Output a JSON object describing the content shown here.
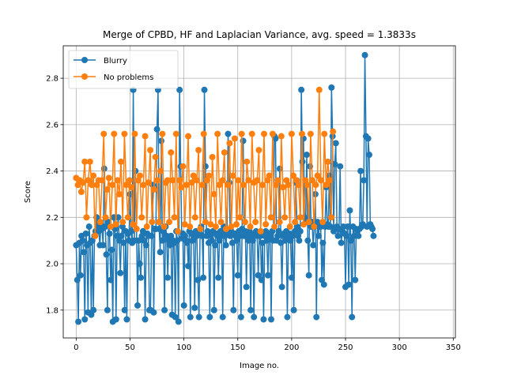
{
  "chart_data": {
    "type": "line",
    "title": "Merge of CPBD, HF and Laplacian Variance, avg. speed = 1.3833s",
    "xlabel": "Image no.",
    "ylabel": "Score",
    "xlim": [
      -12,
      352
    ],
    "ylim": [
      1.68,
      2.94
    ],
    "xticks": [
      0,
      50,
      100,
      150,
      200,
      250,
      300,
      350
    ],
    "yticks": [
      1.8,
      2.0,
      2.2,
      2.4,
      2.6,
      2.8
    ],
    "ytick_labels": [
      "1.8",
      "2.0",
      "2.2",
      "2.4",
      "2.6",
      "2.8"
    ],
    "grid": true,
    "legend_position": "top-left",
    "series": [
      {
        "name": "Blurry",
        "color": "#1f77b4",
        "values": [
          2.08,
          1.93,
          1.75,
          2.09,
          1.95,
          2.12,
          2.1,
          2.05,
          1.76,
          2.13,
          2.08,
          1.79,
          2.16,
          2.09,
          1.78,
          2.1,
          1.8,
          2.12,
          2.14,
          2.2,
          2.16,
          2.14,
          2.08,
          2.17,
          2.15,
          2.08,
          2.41,
          2.16,
          2.04,
          1.8,
          2.18,
          2.13,
          1.93,
          2.06,
          1.75,
          2.2,
          2.15,
          1.76,
          2.12,
          2.2,
          2.1,
          1.96,
          2.12,
          2.16,
          2.09,
          1.8,
          2.14,
          1.76,
          2.13,
          2.1,
          2.3,
          2.14,
          2.09,
          2.75,
          2.1,
          2.4,
          2.15,
          1.82,
          2.1,
          2.0,
          1.94,
          2.12,
          2.14,
          2.1,
          1.76,
          2.08,
          2.13,
          2.12,
          1.8,
          1.8,
          2.12,
          2.34,
          1.79,
          2.15,
          2.15,
          2.58,
          2.75,
          2.15,
          2.05,
          2.53,
          2.1,
          2.14,
          1.8,
          2.16,
          2.12,
          1.94,
          2.1,
          2.08,
          2.12,
          1.78,
          2.1,
          2.09,
          1.77,
          2.14,
          2.1,
          1.75,
          2.75,
          2.42,
          2.11,
          2.13,
          1.82,
          2.12,
          2.1,
          2.09,
          1.99,
          2.14,
          1.77,
          2.13,
          2.1,
          2.12,
          1.81,
          2.14,
          2.12,
          1.93,
          1.77,
          2.13,
          2.16,
          2.12,
          1.94,
          2.75,
          2.42,
          2.12,
          2.14,
          2.09,
          1.77,
          2.12,
          2.1,
          2.14,
          1.8,
          2.08,
          2.13,
          2.12,
          1.94,
          2.1,
          2.14,
          2.12,
          1.77,
          2.16,
          2.12,
          2.08,
          2.13,
          2.56,
          2.35,
          2.12,
          2.14,
          2.09,
          1.8,
          2.13,
          2.12,
          2.1,
          1.95,
          2.14,
          2.12,
          1.77,
          2.15,
          2.53,
          2.12,
          2.14,
          1.9,
          2.12,
          2.1,
          2.14,
          1.8,
          2.12,
          2.1,
          1.77,
          2.13,
          2.14,
          2.12,
          1.95,
          2.13,
          2.12,
          1.93,
          2.09,
          1.76,
          2.12,
          2.14,
          2.1,
          1.95,
          2.13,
          2.12,
          1.76,
          2.14,
          2.1,
          2.55,
          2.54,
          2.1,
          2.12,
          2.14,
          2.41,
          2.09,
          1.9,
          2.12,
          2.13,
          2.1,
          2.14,
          1.77,
          2.12,
          2.13,
          2.1,
          1.94,
          2.12,
          1.8,
          2.14,
          2.35,
          2.16,
          2.12,
          2.1,
          2.14,
          2.75,
          2.44,
          2.54,
          2.2,
          2.18,
          2.47,
          2.1,
          1.95,
          2.42,
          2.16,
          2.18,
          2.08,
          2.16,
          2.3,
          1.77,
          2.18,
          2.12,
          2.17,
          2.16,
          1.93,
          2.09,
          1.91,
          2.16,
          2.33,
          2.17,
          2.16,
          2.38,
          2.16,
          2.76,
          2.55,
          2.14,
          2.43,
          2.52,
          2.16,
          2.12,
          2.15,
          2.42,
          2.09,
          2.14,
          2.16,
          2.13,
          1.9,
          2.12,
          2.16,
          1.91,
          2.23,
          2.1,
          1.77,
          2.16,
          2.12,
          1.93,
          2.15,
          2.14,
          2.12,
          2.15,
          2.4,
          2.16,
          2.17,
          2.36,
          2.9,
          2.55,
          2.16,
          2.54,
          2.47,
          2.17,
          2.16,
          2.15,
          2.12
        ],
        "x_step": 1
      },
      {
        "name": "No problems",
        "color": "#ff7f0e",
        "values": [
          2.37,
          2.34,
          2.36,
          2.31,
          2.35,
          2.44,
          2.2,
          2.36,
          2.44,
          2.34,
          2.38,
          2.12,
          2.34,
          2.36,
          2.18,
          2.36,
          2.56,
          2.2,
          2.32,
          2.37,
          2.16,
          2.34,
          2.56,
          2.17,
          2.36,
          2.3,
          2.44,
          2.18,
          2.56,
          2.34,
          2.2,
          2.36,
          2.33,
          2.17,
          2.56,
          2.15,
          2.36,
          2.38,
          2.2,
          2.34,
          2.55,
          2.16,
          2.35,
          2.49,
          2.18,
          2.32,
          2.46,
          2.36,
          2.18,
          2.4,
          2.56,
          2.16,
          2.35,
          2.36,
          2.18,
          2.48,
          2.36,
          2.2,
          2.56,
          2.14,
          2.36,
          2.33,
          2.42,
          2.17,
          2.34,
          2.55,
          2.16,
          2.35,
          2.38,
          2.2,
          2.36,
          2.49,
          2.15,
          2.34,
          2.56,
          2.18,
          2.36,
          2.38,
          2.17,
          2.46,
          2.3,
          2.16,
          2.56,
          2.34,
          2.18,
          2.36,
          2.48,
          2.15,
          2.34,
          2.52,
          2.16,
          2.38,
          2.54,
          2.17,
          2.36,
          2.2,
          2.56,
          2.34,
          2.18,
          2.44,
          2.36,
          2.16,
          2.56,
          2.35,
          2.18,
          2.36,
          2.49,
          2.14,
          2.34,
          2.56,
          2.17,
          2.36,
          2.38,
          2.2,
          2.56,
          2.16,
          2.34,
          2.36,
          2.18,
          2.55,
          2.33,
          2.2,
          2.36,
          2.34,
          2.16,
          2.56,
          2.38,
          2.18,
          2.36,
          2.34,
          2.2,
          2.56,
          2.17,
          2.36,
          2.34,
          2.18,
          2.56,
          2.36,
          2.16,
          2.34,
          2.38,
          2.75,
          2.36,
          2.18,
          2.56,
          2.34,
          2.44,
          2.36,
          2.2,
          2.57
        ],
        "x_step": 1.6
      }
    ]
  }
}
